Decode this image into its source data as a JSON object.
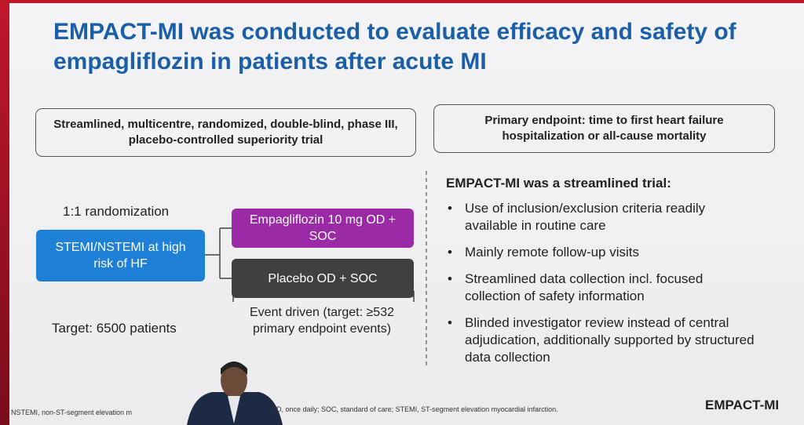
{
  "title": "EMPACT-MI was conducted to evaluate efficacy and safety of empagliflozin in patients after acute MI",
  "design_box": "Streamlined, multicentre, randomized, double-blind, phase III, placebo-controlled superiority trial",
  "endpoint_box": "Primary endpoint: time to first heart failure hospitalization or all-cause mortality",
  "diagram": {
    "randomization": "1:1 randomization",
    "population": "STEMI/NSTEMI at high risk of HF",
    "arm_1": "Empagliflozin 10 mg OD + SOC",
    "arm_2": "Placebo OD + SOC",
    "duration": "Event driven (target: ≥532 primary endpoint events)",
    "target": "Target: 6500 patients"
  },
  "streamlined": {
    "heading": "EMPACT-MI was a streamlined trial:",
    "bullets": [
      "Use of inclusion/exclusion criteria readily available in routine care",
      "Mainly remote follow-up visits",
      "Streamlined data collection incl. focused collection of safety information",
      "Blinded investigator review instead of central adjudication, additionally supported by structured data collection"
    ]
  },
  "footnote": [
    "NSTEMI, non-ST-segment elevation m",
    "OD, once daily; SOC, standard of care; STEMI, ST-segment elevation myocardial infarction."
  ],
  "logo": "EMPACT-MI"
}
